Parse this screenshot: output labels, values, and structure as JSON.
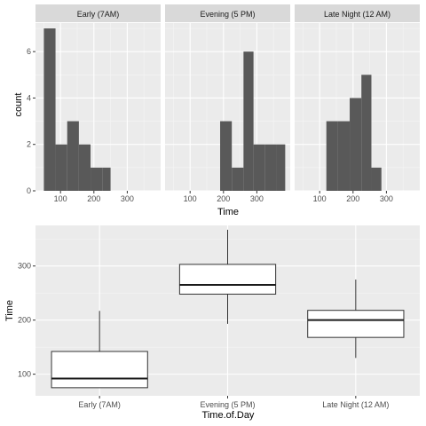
{
  "chart_data": [
    {
      "type": "bar",
      "subtype": "histogram-faceted",
      "xlabel": "Time",
      "ylabel": "count",
      "x_ticks": [
        100,
        200,
        300
      ],
      "y_ticks": [
        0,
        2,
        4,
        6
      ],
      "xlim": [
        25,
        400
      ],
      "ylim": [
        0,
        7
      ],
      "grid": true,
      "facets": [
        {
          "label": "Early (7AM)",
          "bins": [
            {
              "x0": 50,
              "x1": 85,
              "count": 7
            },
            {
              "x0": 85,
              "x1": 120,
              "count": 2
            },
            {
              "x0": 120,
              "x1": 155,
              "count": 3
            },
            {
              "x0": 155,
              "x1": 190,
              "count": 2
            },
            {
              "x0": 190,
              "x1": 225,
              "count": 1
            },
            {
              "x0": 225,
              "x1": 250,
              "count": 1
            }
          ]
        },
        {
          "label": "Evening (5 PM)",
          "bins": [
            {
              "x0": 190,
              "x1": 225,
              "count": 3
            },
            {
              "x0": 225,
              "x1": 260,
              "count": 1
            },
            {
              "x0": 260,
              "x1": 290,
              "count": 6
            },
            {
              "x0": 290,
              "x1": 325,
              "count": 2
            },
            {
              "x0": 325,
              "x1": 360,
              "count": 2
            },
            {
              "x0": 360,
              "x1": 385,
              "count": 2
            }
          ]
        },
        {
          "label": "Late Night (12 AM)",
          "bins": [
            {
              "x0": 120,
              "x1": 155,
              "count": 3
            },
            {
              "x0": 155,
              "x1": 190,
              "count": 3
            },
            {
              "x0": 190,
              "x1": 225,
              "count": 4
            },
            {
              "x0": 225,
              "x1": 255,
              "count": 5
            },
            {
              "x0": 255,
              "x1": 285,
              "count": 1
            }
          ]
        }
      ]
    },
    {
      "type": "boxplot",
      "xlabel": "Time.of.Day",
      "ylabel": "Time",
      "categories": [
        "Early (7AM)",
        "Evening (5 PM)",
        "Late Night (12 AM)"
      ],
      "y_ticks": [
        100,
        200,
        300
      ],
      "ylim": [
        60,
        375
      ],
      "grid": true,
      "boxes": [
        {
          "min": 75,
          "q1": 75,
          "median": 92,
          "q3": 142,
          "max": 217
        },
        {
          "min": 193,
          "q1": 248,
          "median": 265,
          "q3": 303,
          "max": 367
        },
        {
          "min": 130,
          "q1": 168,
          "median": 200,
          "q3": 218,
          "max": 275
        }
      ]
    }
  ]
}
